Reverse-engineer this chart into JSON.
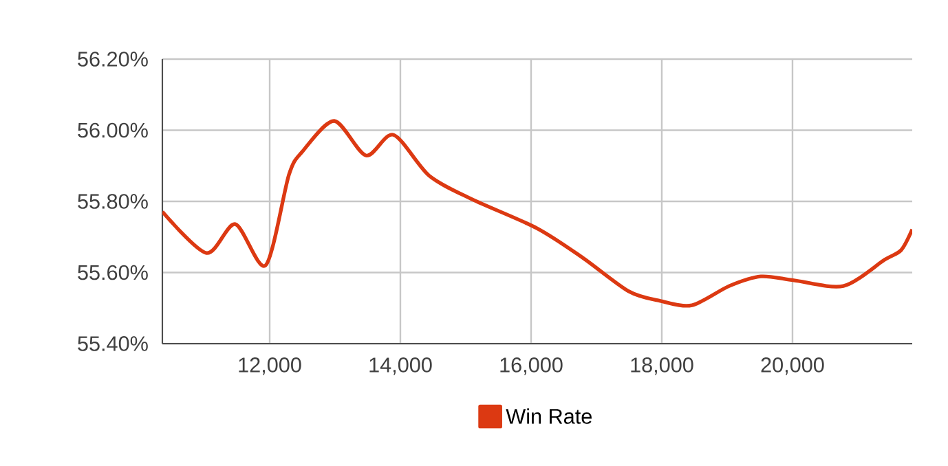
{
  "chart_data": {
    "type": "line",
    "x": [
      10358,
      11032,
      11474,
      11937,
      12295,
      12505,
      12989,
      13474,
      13895,
      14442,
      15095,
      16084,
      16779,
      17495,
      17979,
      18463,
      19032,
      19516,
      20021,
      20779,
      21411,
      21663,
      21832
    ],
    "series": [
      {
        "name": "Win Rate",
        "color": "#dc3912",
        "values": [
          55.771,
          55.655,
          55.736,
          55.62,
          55.875,
          55.941,
          56.026,
          55.929,
          55.987,
          55.872,
          55.806,
          55.725,
          55.643,
          55.547,
          55.52,
          55.508,
          55.562,
          55.589,
          55.578,
          55.562,
          55.636,
          55.663,
          55.721
        ]
      }
    ],
    "xlim": [
      10358,
      21832
    ],
    "xticks": [
      {
        "value": 12000,
        "label": "12,000"
      },
      {
        "value": 14000,
        "label": "14,000"
      },
      {
        "value": 16000,
        "label": "16,000"
      },
      {
        "value": 18000,
        "label": "18,000"
      },
      {
        "value": 20000,
        "label": "20,000"
      }
    ],
    "ylim": [
      55.4,
      56.2
    ],
    "yticks": [
      {
        "value": 55.4,
        "label": "55.40%"
      },
      {
        "value": 55.6,
        "label": "55.60%"
      },
      {
        "value": 55.8,
        "label": "55.80%"
      },
      {
        "value": 56.0,
        "label": "56.00%"
      },
      {
        "value": 56.2,
        "label": "56.20%"
      }
    ],
    "grid": true,
    "legend": "bottom"
  }
}
